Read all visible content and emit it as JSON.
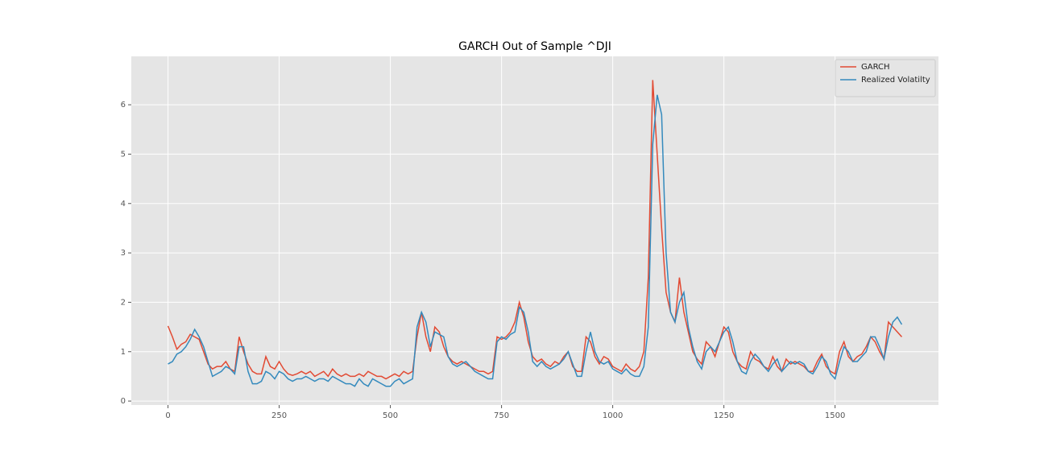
{
  "chart_data": {
    "type": "line",
    "title": "GARCH Out of Sample ^DJI",
    "x": [
      0,
      10,
      20,
      30,
      40,
      50,
      60,
      70,
      80,
      90,
      100,
      110,
      120,
      130,
      140,
      150,
      160,
      170,
      180,
      190,
      200,
      210,
      220,
      230,
      240,
      250,
      260,
      270,
      280,
      290,
      300,
      310,
      320,
      330,
      340,
      350,
      360,
      370,
      380,
      390,
      400,
      410,
      420,
      430,
      440,
      450,
      460,
      470,
      480,
      490,
      500,
      510,
      520,
      530,
      540,
      550,
      560,
      570,
      580,
      590,
      600,
      610,
      620,
      630,
      640,
      650,
      660,
      670,
      680,
      690,
      700,
      710,
      720,
      730,
      740,
      750,
      760,
      770,
      780,
      790,
      800,
      810,
      820,
      830,
      840,
      850,
      860,
      870,
      880,
      890,
      900,
      910,
      920,
      930,
      940,
      950,
      960,
      970,
      980,
      990,
      1000,
      1010,
      1020,
      1030,
      1040,
      1050,
      1060,
      1070,
      1080,
      1090,
      1100,
      1110,
      1120,
      1130,
      1140,
      1150,
      1160,
      1170,
      1180,
      1190,
      1200,
      1210,
      1220,
      1230,
      1240,
      1250,
      1260,
      1270,
      1280,
      1290,
      1300,
      1310,
      1320,
      1330,
      1340,
      1350,
      1360,
      1370,
      1380,
      1390,
      1400,
      1410,
      1420,
      1430,
      1440,
      1450,
      1460,
      1470,
      1480,
      1490,
      1500,
      1510,
      1520,
      1530,
      1540,
      1550,
      1560,
      1570,
      1580,
      1590,
      1600,
      1610,
      1620,
      1630,
      1640,
      1650
    ],
    "series": [
      {
        "name": "GARCH",
        "color": "#E24A33",
        "values": [
          1.52,
          1.3,
          1.05,
          1.15,
          1.2,
          1.35,
          1.3,
          1.25,
          1.0,
          0.75,
          0.65,
          0.7,
          0.7,
          0.8,
          0.65,
          0.6,
          1.3,
          1.0,
          0.75,
          0.6,
          0.55,
          0.55,
          0.9,
          0.7,
          0.65,
          0.8,
          0.65,
          0.55,
          0.52,
          0.55,
          0.6,
          0.55,
          0.6,
          0.5,
          0.55,
          0.6,
          0.5,
          0.65,
          0.55,
          0.5,
          0.55,
          0.5,
          0.5,
          0.55,
          0.5,
          0.6,
          0.55,
          0.5,
          0.5,
          0.45,
          0.5,
          0.55,
          0.5,
          0.6,
          0.55,
          0.6,
          1.3,
          1.8,
          1.3,
          1.0,
          1.5,
          1.4,
          1.1,
          0.9,
          0.8,
          0.75,
          0.8,
          0.75,
          0.7,
          0.65,
          0.6,
          0.6,
          0.55,
          0.6,
          1.3,
          1.25,
          1.3,
          1.4,
          1.6,
          2.0,
          1.7,
          1.2,
          0.9,
          0.8,
          0.85,
          0.75,
          0.7,
          0.8,
          0.75,
          0.9,
          1.0,
          0.7,
          0.6,
          0.6,
          1.3,
          1.2,
          0.9,
          0.75,
          0.9,
          0.85,
          0.7,
          0.65,
          0.6,
          0.75,
          0.65,
          0.6,
          0.7,
          1.0,
          2.5,
          6.5,
          5.0,
          3.5,
          2.2,
          1.8,
          1.6,
          2.5,
          1.8,
          1.4,
          1.0,
          0.85,
          0.75,
          1.2,
          1.1,
          0.9,
          1.2,
          1.5,
          1.4,
          1.0,
          0.8,
          0.7,
          0.65,
          1.0,
          0.85,
          0.8,
          0.7,
          0.65,
          0.9,
          0.7,
          0.6,
          0.85,
          0.75,
          0.8,
          0.75,
          0.7,
          0.6,
          0.6,
          0.8,
          0.95,
          0.7,
          0.6,
          0.55,
          1.0,
          1.2,
          0.9,
          0.8,
          0.9,
          0.95,
          1.1,
          1.3,
          1.2,
          1.0,
          0.85,
          1.6,
          1.5,
          1.4,
          1.3
        ]
      },
      {
        "name": "Realized Volatilty",
        "color": "#348ABD",
        "values": [
          0.75,
          0.8,
          0.95,
          1.0,
          1.1,
          1.25,
          1.45,
          1.3,
          1.1,
          0.8,
          0.5,
          0.55,
          0.6,
          0.7,
          0.65,
          0.55,
          1.1,
          1.1,
          0.6,
          0.35,
          0.35,
          0.4,
          0.6,
          0.55,
          0.45,
          0.6,
          0.55,
          0.45,
          0.4,
          0.45,
          0.45,
          0.5,
          0.45,
          0.4,
          0.45,
          0.45,
          0.4,
          0.5,
          0.45,
          0.4,
          0.35,
          0.35,
          0.3,
          0.45,
          0.35,
          0.3,
          0.45,
          0.4,
          0.35,
          0.3,
          0.3,
          0.4,
          0.45,
          0.35,
          0.4,
          0.45,
          1.5,
          1.8,
          1.6,
          1.1,
          1.4,
          1.35,
          1.3,
          0.9,
          0.75,
          0.7,
          0.75,
          0.8,
          0.7,
          0.6,
          0.55,
          0.5,
          0.45,
          0.45,
          1.2,
          1.3,
          1.25,
          1.35,
          1.4,
          1.9,
          1.8,
          1.4,
          0.8,
          0.7,
          0.8,
          0.7,
          0.65,
          0.7,
          0.75,
          0.85,
          1.0,
          0.75,
          0.5,
          0.5,
          1.0,
          1.4,
          1.0,
          0.8,
          0.75,
          0.8,
          0.65,
          0.6,
          0.55,
          0.65,
          0.55,
          0.5,
          0.5,
          0.7,
          1.5,
          5.2,
          6.2,
          5.8,
          3.0,
          1.8,
          1.6,
          2.0,
          2.2,
          1.5,
          1.1,
          0.8,
          0.65,
          1.0,
          1.1,
          1.0,
          1.2,
          1.4,
          1.5,
          1.2,
          0.8,
          0.6,
          0.55,
          0.8,
          0.95,
          0.85,
          0.7,
          0.6,
          0.75,
          0.85,
          0.6,
          0.7,
          0.8,
          0.75,
          0.8,
          0.75,
          0.6,
          0.55,
          0.7,
          0.9,
          0.8,
          0.55,
          0.45,
          0.8,
          1.1,
          1.0,
          0.8,
          0.8,
          0.9,
          1.0,
          1.3,
          1.3,
          1.1,
          0.85,
          1.3,
          1.6,
          1.7,
          1.55
        ]
      }
    ],
    "xlim": [
      -82.5,
      1732.5
    ],
    "ylim": [
      -0.08,
      6.98
    ],
    "xticks": [
      0,
      250,
      500,
      750,
      1000,
      1250,
      1500
    ],
    "yticks": [
      0,
      1,
      2,
      3,
      4,
      5,
      6
    ],
    "grid": true,
    "legend": "upper right"
  }
}
